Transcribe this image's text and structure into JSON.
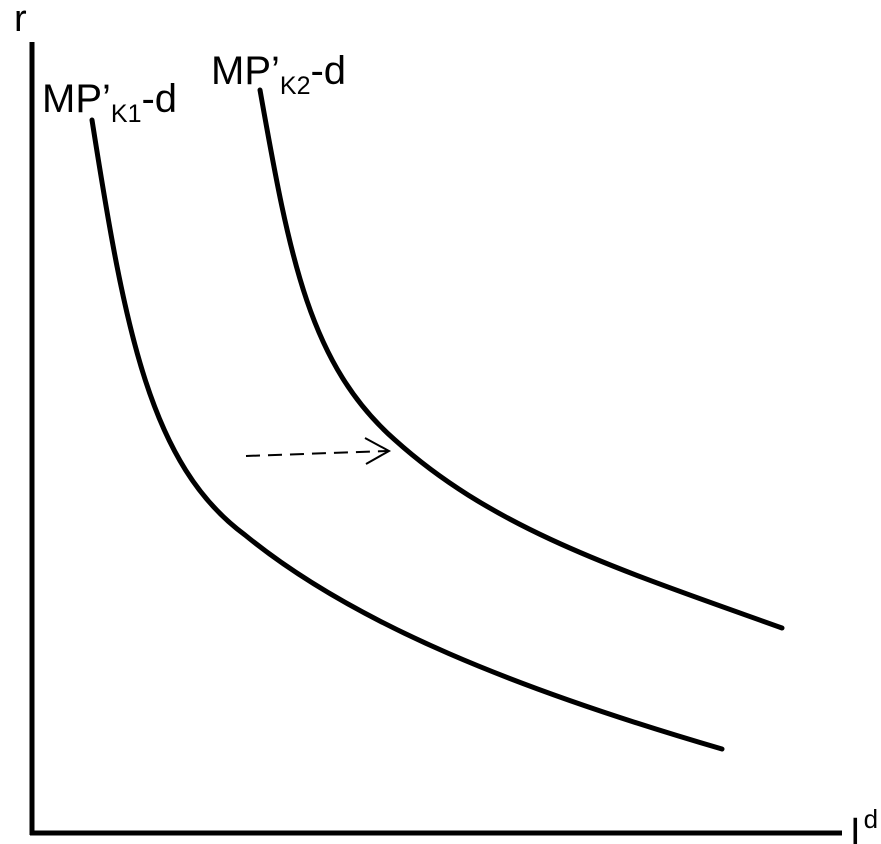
{
  "labels": {
    "y_axis": "r",
    "x_axis_main": "I",
    "x_axis_sup": "d"
  },
  "curves": [
    {
      "prefix": "MP’",
      "subscript": "K1",
      "suffix": "-d"
    },
    {
      "prefix": "MP’",
      "subscript": "K2",
      "suffix": "-d"
    }
  ],
  "colors": {
    "line": "#000000",
    "background": "#ffffff"
  }
}
